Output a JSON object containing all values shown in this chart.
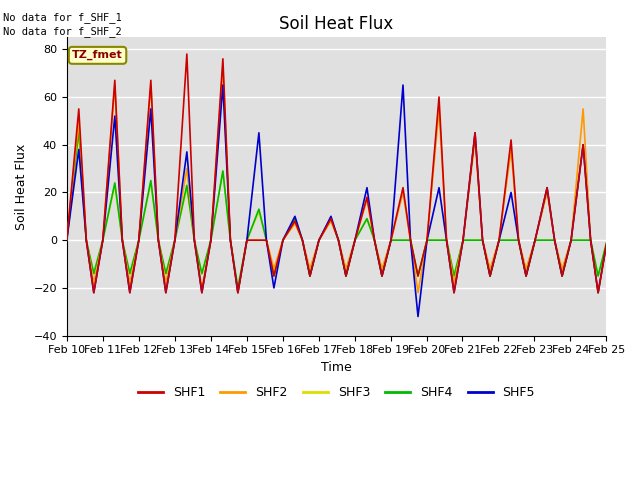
{
  "title": "Soil Heat Flux",
  "ylabel": "Soil Heat Flux",
  "xlabel": "Time",
  "annotations": [
    "No data for f_SHF_1",
    "No data for f_SHF_2"
  ],
  "legend_label": "TZ_fmet",
  "legend_entries": [
    "SHF1",
    "SHF2",
    "SHF3",
    "SHF4",
    "SHF5"
  ],
  "colors": {
    "SHF1": "#cc0000",
    "SHF2": "#ff9900",
    "SHF3": "#dddd00",
    "SHF4": "#00bb00",
    "SHF5": "#0000cc"
  },
  "ylim": [
    -40,
    85
  ],
  "yticks": [
    -40,
    -20,
    0,
    20,
    40,
    60,
    80
  ],
  "x_tick_labels": [
    "Feb 10",
    "Feb 11",
    "Feb 12",
    "Feb 13",
    "Feb 14",
    "Feb 15",
    "Feb 16",
    "Feb 17",
    "Feb 18",
    "Feb 19",
    "Feb 20",
    "Feb 21",
    "Feb 22",
    "Feb 23",
    "Feb 24",
    "Feb 25"
  ],
  "bg_color": "#e0e0e0",
  "line_width": 1.2,
  "title_fontsize": 12,
  "axis_label_fontsize": 9,
  "tick_fontsize": 8
}
